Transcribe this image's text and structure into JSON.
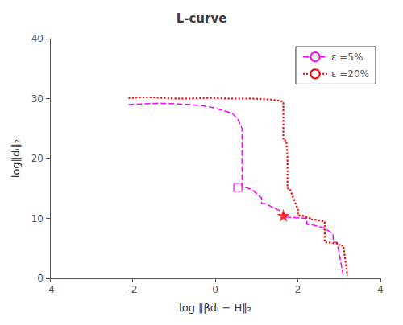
{
  "chart_data": {
    "type": "line",
    "title": "L-curve",
    "x_label": "log ‖βdₗ − H‖₂",
    "y_label": "log‖dₗ‖₂",
    "xlim": [
      -4,
      4
    ],
    "ylim": [
      0,
      40
    ],
    "xticks": [
      -4,
      -2,
      0,
      2,
      4
    ],
    "yticks": [
      0,
      10,
      20,
      30,
      40
    ],
    "grid": false,
    "legend": "upper right",
    "background_color": "#ffffff",
    "series": [
      {
        "name": "ε =5%",
        "type": "line",
        "color": "#FF00FF",
        "line_style": "dashed",
        "x": [
          -2.1,
          -1.8,
          -1.5,
          -1.2,
          -0.9,
          -0.6,
          -0.3,
          -0.05,
          0.2,
          0.42,
          0.55,
          0.65,
          0.65,
          0.65,
          0.65,
          0.72,
          0.9,
          1.1,
          1.12,
          1.12,
          1.2,
          1.5,
          1.65,
          1.65,
          1.65,
          1.75,
          2.0,
          2.2,
          2.22,
          2.22,
          2.3,
          2.6,
          2.85,
          2.86,
          2.86,
          2.95,
          3.1
        ],
        "values": [
          29.0,
          29.1,
          29.2,
          29.2,
          29.1,
          29.0,
          28.8,
          28.5,
          28.0,
          27.5,
          26.5,
          25.0,
          22.0,
          18.0,
          15.2,
          15.2,
          14.8,
          13.5,
          13.5,
          12.5,
          12.5,
          11.5,
          11.0,
          11.0,
          10.2,
          10.2,
          10.1,
          10.0,
          10.0,
          9.0,
          9.0,
          8.5,
          7.5,
          7.5,
          6.0,
          6.0,
          0.5
        ]
      },
      {
        "name": "ε =20%",
        "type": "line",
        "color": "#FF0000",
        "line_style": "dotted",
        "x": [
          -2.1,
          -1.8,
          -1.5,
          -1.2,
          -0.9,
          -0.6,
          -0.3,
          0.0,
          0.3,
          0.6,
          0.9,
          1.2,
          1.5,
          1.65,
          1.65,
          1.65,
          1.72,
          1.75,
          1.75,
          1.75,
          1.8,
          2.0,
          2.0,
          2.0,
          2.1,
          2.3,
          2.3,
          2.3,
          2.4,
          2.65,
          2.65,
          2.65,
          2.75,
          3.0,
          3.0,
          3.0,
          3.1,
          3.2
        ],
        "values": [
          30.1,
          30.2,
          30.2,
          30.1,
          30.0,
          30.0,
          30.1,
          30.1,
          30.0,
          30.0,
          30.0,
          29.9,
          29.7,
          29.5,
          27.0,
          23.0,
          23.0,
          20.0,
          20.0,
          15.0,
          15.0,
          11.5,
          11.5,
          10.5,
          10.5,
          10.0,
          10.0,
          9.8,
          9.8,
          9.5,
          9.5,
          6.0,
          6.0,
          5.8,
          5.8,
          5.5,
          5.5,
          0.5
        ]
      },
      {
        "type": "scatter",
        "color": "#FF00FF",
        "marker": "open_square",
        "x": [
          0.55
        ],
        "values": [
          15.2
        ]
      },
      {
        "type": "scatter",
        "color": "#FF0000",
        "marker": "star",
        "x": [
          1.65
        ],
        "values": [
          10.5
        ]
      }
    ]
  }
}
